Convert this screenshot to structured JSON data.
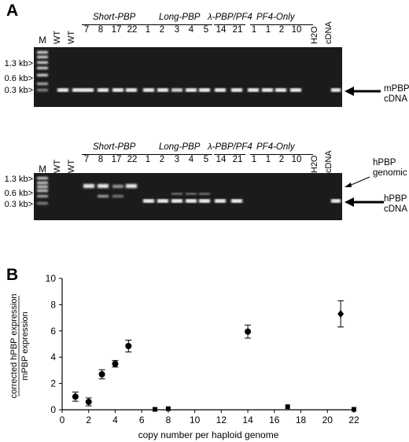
{
  "panel_a": {
    "letter": "A",
    "ladder_label": "M",
    "size_markers": [
      "1.3 kb>",
      "0.6 kb>",
      "0.3 kb>"
    ],
    "lane_labels": [
      "WT",
      "WT",
      "H2O",
      "cDNA"
    ],
    "groups": [
      {
        "name": "Short-PBP",
        "lanes": [
          "7",
          "8",
          "17",
          "22"
        ]
      },
      {
        "name": "Long-PBP",
        "lanes": [
          "1",
          "2",
          "3",
          "4",
          "5"
        ]
      },
      {
        "name": "λ-PBP/PF4",
        "lanes": [
          "14",
          "21"
        ]
      },
      {
        "name": "PF4-Only",
        "lanes": [
          "1",
          "1",
          "2",
          "10"
        ]
      }
    ],
    "top_gel_label": {
      "line1": "mPBP",
      "line2": "cDNA"
    },
    "bottom_gel_genomic": {
      "line1": "hPBP",
      "line2": "genomic"
    },
    "bottom_gel_cdna": {
      "line1": "hPBP",
      "line2": "cDNA"
    }
  },
  "panel_b": {
    "letter": "B",
    "chart_data": {
      "type": "scatter",
      "xlabel": "copy number per haploid genome",
      "ylabel_line1": "corrected hPBP expression",
      "ylabel_line2": "mPBP expression",
      "xlim": [
        0,
        22
      ],
      "ylim": [
        0,
        10
      ],
      "x_ticks": [
        0,
        2,
        4,
        6,
        8,
        10,
        12,
        14,
        16,
        18,
        20,
        22
      ],
      "y_ticks": [
        0,
        2,
        4,
        6,
        8,
        10
      ],
      "series": [
        {
          "marker": "circle",
          "points": [
            {
              "x": 1,
              "y": 1.0,
              "err": 0.35
            },
            {
              "x": 2,
              "y": 0.6,
              "err": 0.3
            },
            {
              "x": 3,
              "y": 2.7,
              "err": 0.35
            },
            {
              "x": 4,
              "y": 3.5,
              "err": 0.25
            },
            {
              "x": 5,
              "y": 4.85,
              "err": 0.45
            },
            {
              "x": 14,
              "y": 5.95,
              "err": 0.5
            }
          ]
        },
        {
          "marker": "square",
          "points": [
            {
              "x": 7,
              "y": 0.0,
              "err": 0
            },
            {
              "x": 8,
              "y": 0.05,
              "err": 0
            },
            {
              "x": 17,
              "y": 0.2,
              "err": 0
            },
            {
              "x": 22,
              "y": 0.0,
              "err": 0
            }
          ]
        },
        {
          "marker": "diamond",
          "points": [
            {
              "x": 21,
              "y": 7.3,
              "err": 1.0
            }
          ]
        }
      ]
    }
  }
}
